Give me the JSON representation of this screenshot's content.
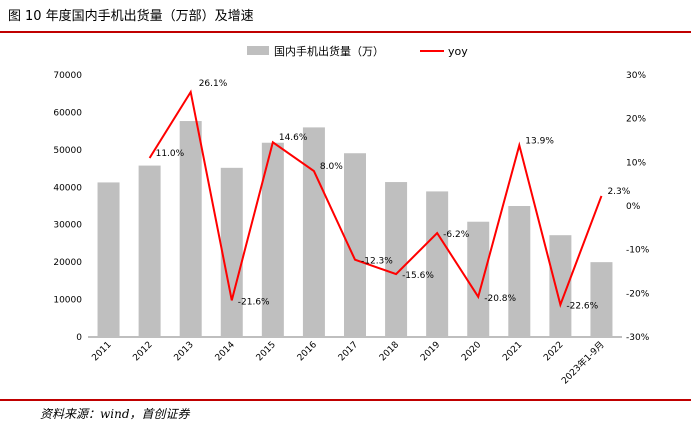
{
  "figure": {
    "label": "图",
    "number": "10",
    "title": "年度国内手机出货量（万部）及增速"
  },
  "source": "资料来源：wind，首创证券",
  "chart_data": {
    "type": "bar+line",
    "categories": [
      "2011",
      "2012",
      "2013",
      "2014",
      "2015",
      "2016",
      "2017",
      "2018",
      "2019",
      "2020",
      "2021",
      "2022",
      "2023年1-9月"
    ],
    "series": [
      {
        "name": "国内手机出货量（万）",
        "type": "bar",
        "axis": "left",
        "color": "#bfbfbf",
        "values": [
          41300,
          45800,
          57700,
          45200,
          51900,
          56000,
          49100,
          41400,
          38900,
          30800,
          35000,
          27200,
          20000
        ]
      },
      {
        "name": "yoy",
        "type": "line",
        "axis": "right",
        "color": "#ff0000",
        "values": [
          null,
          11.0,
          26.1,
          -21.6,
          14.6,
          8.0,
          -12.3,
          -15.6,
          -6.2,
          -20.8,
          13.9,
          -22.6,
          2.3
        ],
        "labels": [
          "",
          "11.0%",
          "26.1%",
          "-21.6%",
          "14.6%",
          "8.0%",
          "-12.3%",
          "-15.6%",
          "-6.2%",
          "-20.8%",
          "13.9%",
          "-22.6%",
          "2.3%"
        ]
      }
    ],
    "y_left": {
      "min": 0,
      "max": 70000,
      "ticks": [
        0,
        10000,
        20000,
        30000,
        40000,
        50000,
        60000,
        70000
      ]
    },
    "y_right": {
      "min": -30,
      "max": 30,
      "ticks": [
        -30,
        -20,
        -10,
        0,
        10,
        20,
        30
      ],
      "tick_labels": [
        "-30%",
        "-20%",
        "-10%",
        "0%",
        "10%",
        "20%",
        "30%"
      ]
    },
    "legend_position": "top",
    "grid": false
  }
}
